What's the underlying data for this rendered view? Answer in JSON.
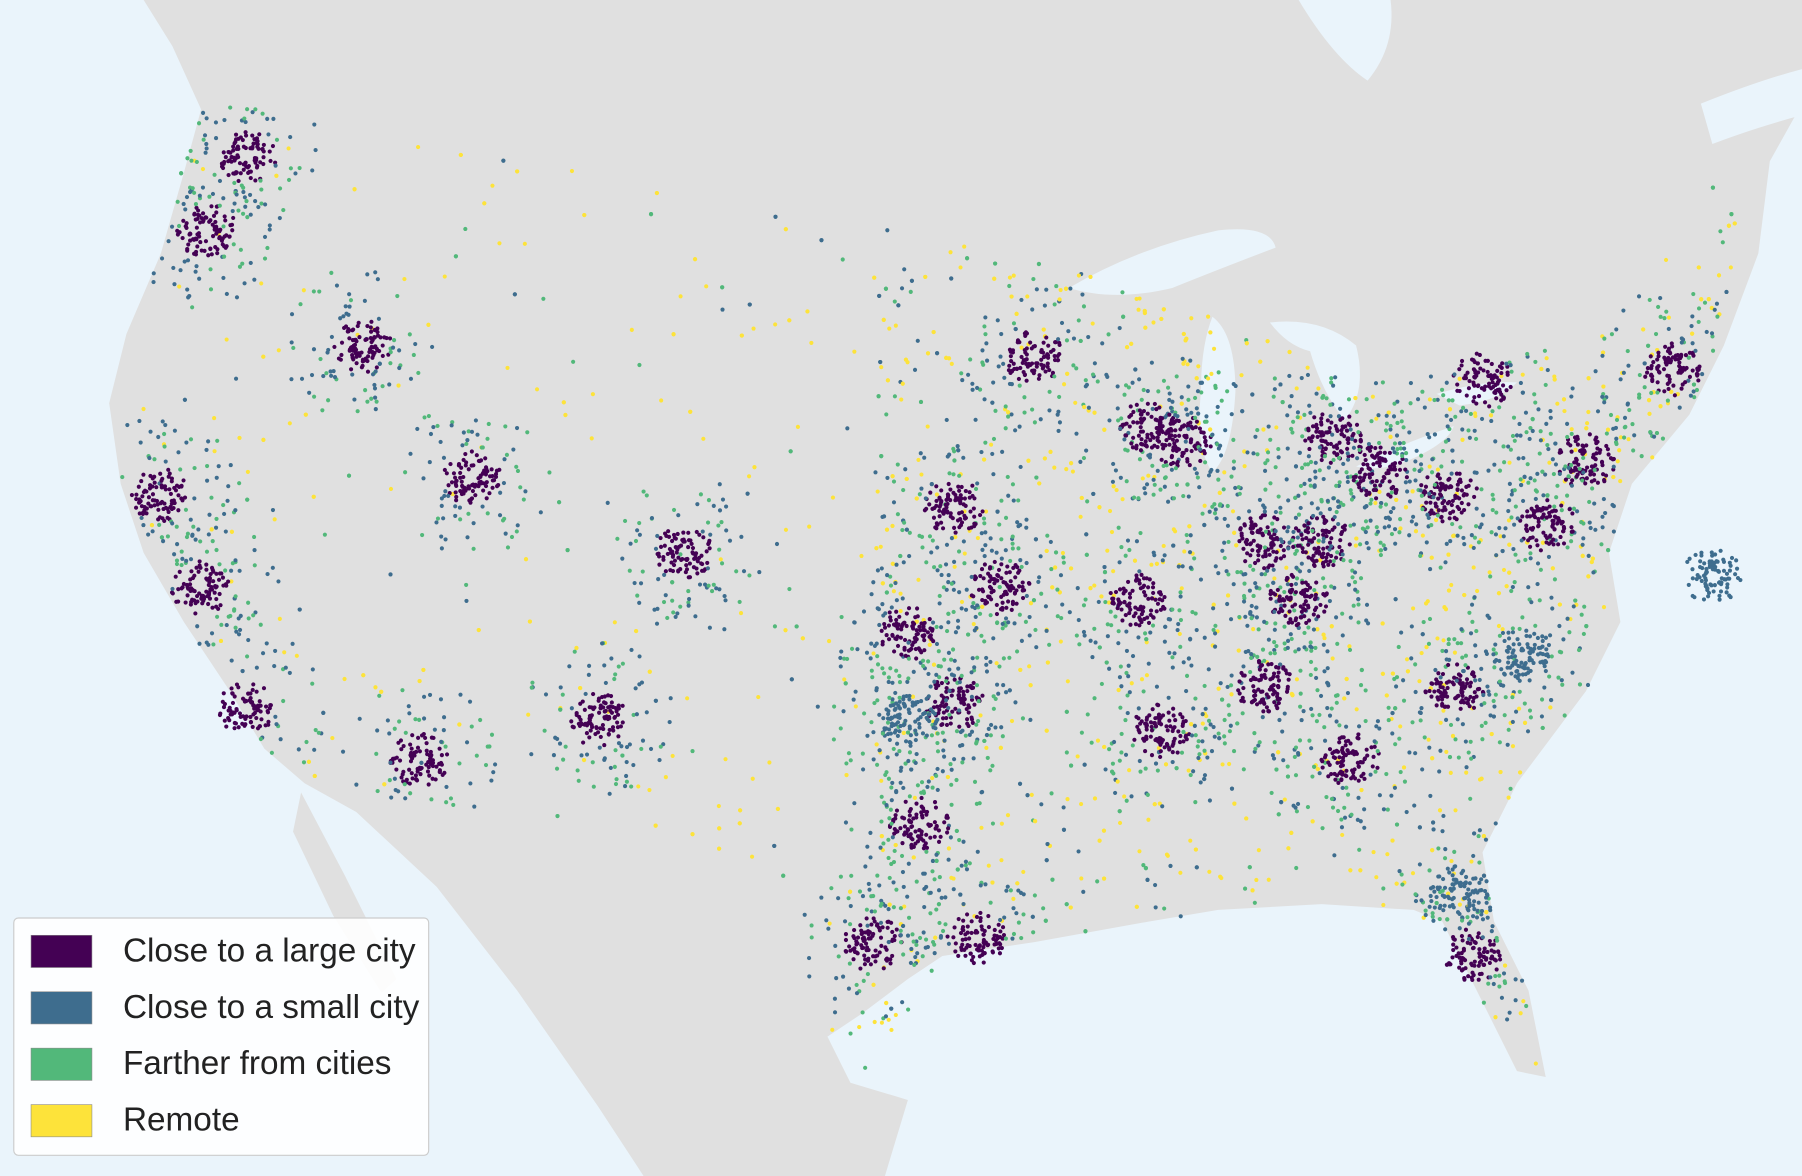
{
  "legend": {
    "items": [
      {
        "label": "Close to a large city",
        "color": "#440154"
      },
      {
        "label": "Close to a small city",
        "color": "#3e6d8e"
      },
      {
        "label": "Farther from cities",
        "color": "#52b87a"
      },
      {
        "label": "Remote",
        "color": "#fde33a"
      }
    ]
  }
}
